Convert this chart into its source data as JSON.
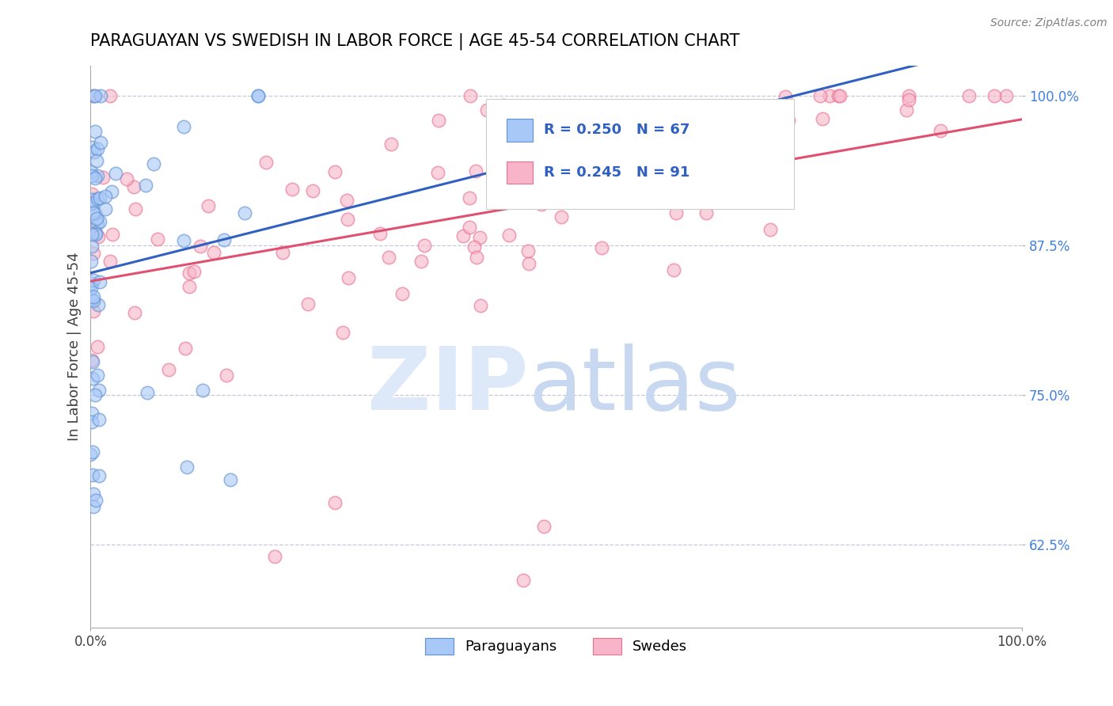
{
  "title": "PARAGUAYAN VS SWEDISH IN LABOR FORCE | AGE 45-54 CORRELATION CHART",
  "source_text": "Source: ZipAtlas.com",
  "ylabel": "In Labor Force | Age 45-54",
  "xlim": [
    0.0,
    1.0
  ],
  "ylim": [
    0.555,
    1.025
  ],
  "yticks": [
    0.625,
    0.75,
    0.875,
    1.0
  ],
  "ytick_labels": [
    "62.5%",
    "75.0%",
    "87.5%",
    "100.0%"
  ],
  "legend_r_blue": "R = 0.250",
  "legend_n_blue": "N = 67",
  "legend_r_pink": "R = 0.245",
  "legend_n_pink": "N = 91",
  "legend_label_blue": "Paraguayans",
  "legend_label_pink": "Swedes",
  "blue_fill_color": "#a8c8f8",
  "pink_fill_color": "#f8b4c8",
  "blue_edge_color": "#6090d0",
  "pink_edge_color": "#e87090",
  "blue_line_color": "#3060c0",
  "pink_line_color": "#e05070",
  "legend_text_color": "#3060c0",
  "ytick_color": "#4080e0",
  "grid_color": "#c8c8d8",
  "title_color": "#000000",
  "source_color": "#808080",
  "watermark_zip_color": "#dde8f8",
  "watermark_atlas_color": "#c8d8f0"
}
